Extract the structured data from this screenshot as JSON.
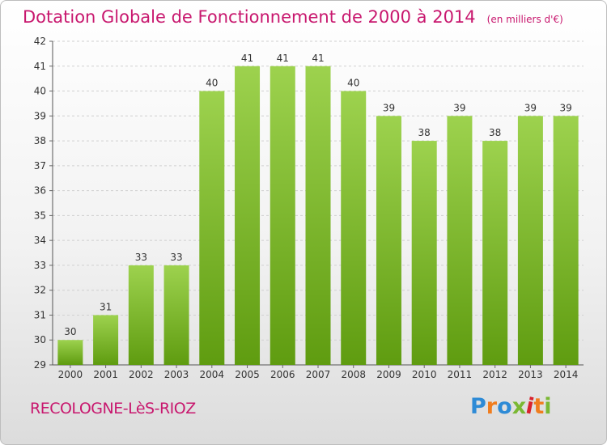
{
  "header": {
    "title": "Dotation Globale de Fonctionnement de 2000 à 2014",
    "unit_note": "(en milliers d'€)"
  },
  "footer": {
    "town": "RECOLOGNE-LèS-RIOZ",
    "logo_text": "Proxiti",
    "logo_colors": [
      "#2e8bd6",
      "#f07d1e",
      "#2e8bd6",
      "#7ab833",
      "#d9232e",
      "#f07d1e",
      "#7ab833"
    ]
  },
  "colors": {
    "accent": "#c8176e",
    "bar_light": "#9dd24e",
    "bar_dark": "#5f9c10"
  },
  "chart_data": {
    "type": "bar",
    "categories": [
      "2000",
      "2001",
      "2002",
      "2003",
      "2004",
      "2005",
      "2006",
      "2007",
      "2008",
      "2009",
      "2010",
      "2011",
      "2012",
      "2013",
      "2014"
    ],
    "values": [
      30,
      31,
      33,
      33,
      40,
      41,
      41,
      41,
      40,
      39,
      38,
      39,
      38,
      39,
      39
    ],
    "ylim": [
      29,
      42
    ],
    "yticks": [
      29,
      30,
      31,
      32,
      33,
      34,
      35,
      36,
      37,
      38,
      39,
      40,
      41,
      42
    ],
    "grid": true,
    "data_labels": true
  }
}
